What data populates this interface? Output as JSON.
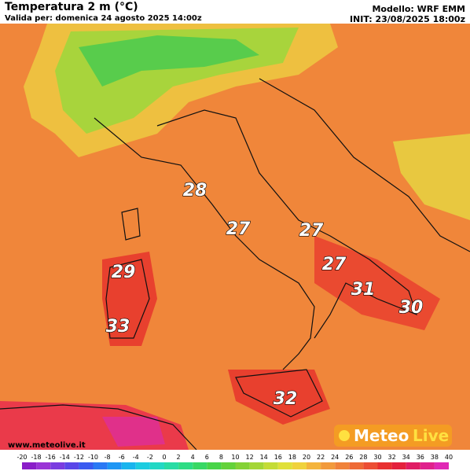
{
  "header": {
    "title": "Temperatura 2 m (°C)",
    "valid": "Valida per: domenica 24 agosto 2025 14:00z",
    "model": "Modello: WRF EMM",
    "init": "INIT: 23/08/2025 18:00z"
  },
  "labels": [
    28,
    27,
    27,
    27,
    29,
    31,
    30,
    33,
    32
  ],
  "logo": {
    "brand1": "Meteo",
    "brand2": "Live"
  },
  "website": "www.meteolive.it",
  "colorbar": {
    "ticks": [
      -20,
      -18,
      -16,
      -14,
      -12,
      -10,
      -8,
      -6,
      -4,
      -2,
      0,
      2,
      4,
      6,
      8,
      10,
      12,
      14,
      16,
      18,
      20,
      22,
      24,
      26,
      28,
      30,
      32,
      34,
      36,
      38,
      40
    ],
    "colors": [
      "#8a1ec8",
      "#9a34d6",
      "#7a3ce0",
      "#5a46e8",
      "#3a5af0",
      "#2a78f4",
      "#1e96f4",
      "#18b4ee",
      "#1ccce0",
      "#22d8c4",
      "#28dca4",
      "#2edc84",
      "#38d864",
      "#48d448",
      "#64d23a",
      "#84d236",
      "#a4d636",
      "#c4dc36",
      "#e0e03a",
      "#f0d23c",
      "#f4b43c",
      "#f29a3c",
      "#f0823a",
      "#ee6a36",
      "#ec4e34",
      "#e83030",
      "#e4203c",
      "#e01c64",
      "#e0208c",
      "#e028b4"
    ]
  }
}
